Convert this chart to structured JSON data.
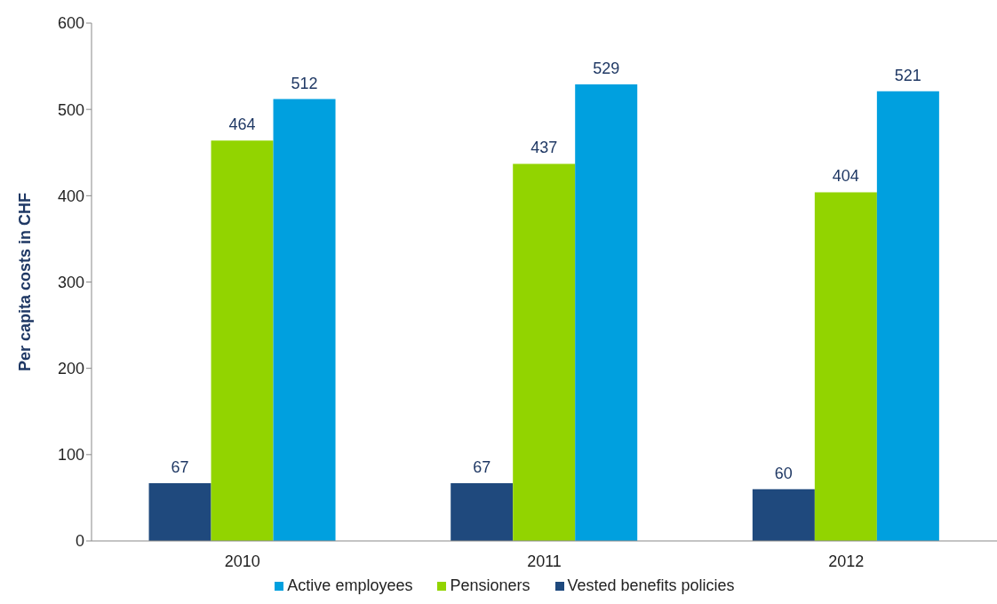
{
  "chart_data": {
    "type": "bar",
    "ylabel": "Per capita costs in CHF",
    "categories": [
      "2010",
      "2011",
      "2012"
    ],
    "series": [
      {
        "name": "Vested benefits policies",
        "color": "#1f497d",
        "values": [
          67,
          67,
          60
        ]
      },
      {
        "name": "Pensioners",
        "color": "#92d400",
        "values": [
          464,
          437,
          404
        ]
      },
      {
        "name": "Active employees",
        "color": "#00a0df",
        "values": [
          512,
          529,
          521
        ]
      }
    ],
    "ylim": [
      0,
      600
    ],
    "yticks": [
      0,
      100,
      200,
      300,
      400,
      500,
      600
    ],
    "grid": false,
    "legend": "bottom",
    "data_labels": true
  }
}
